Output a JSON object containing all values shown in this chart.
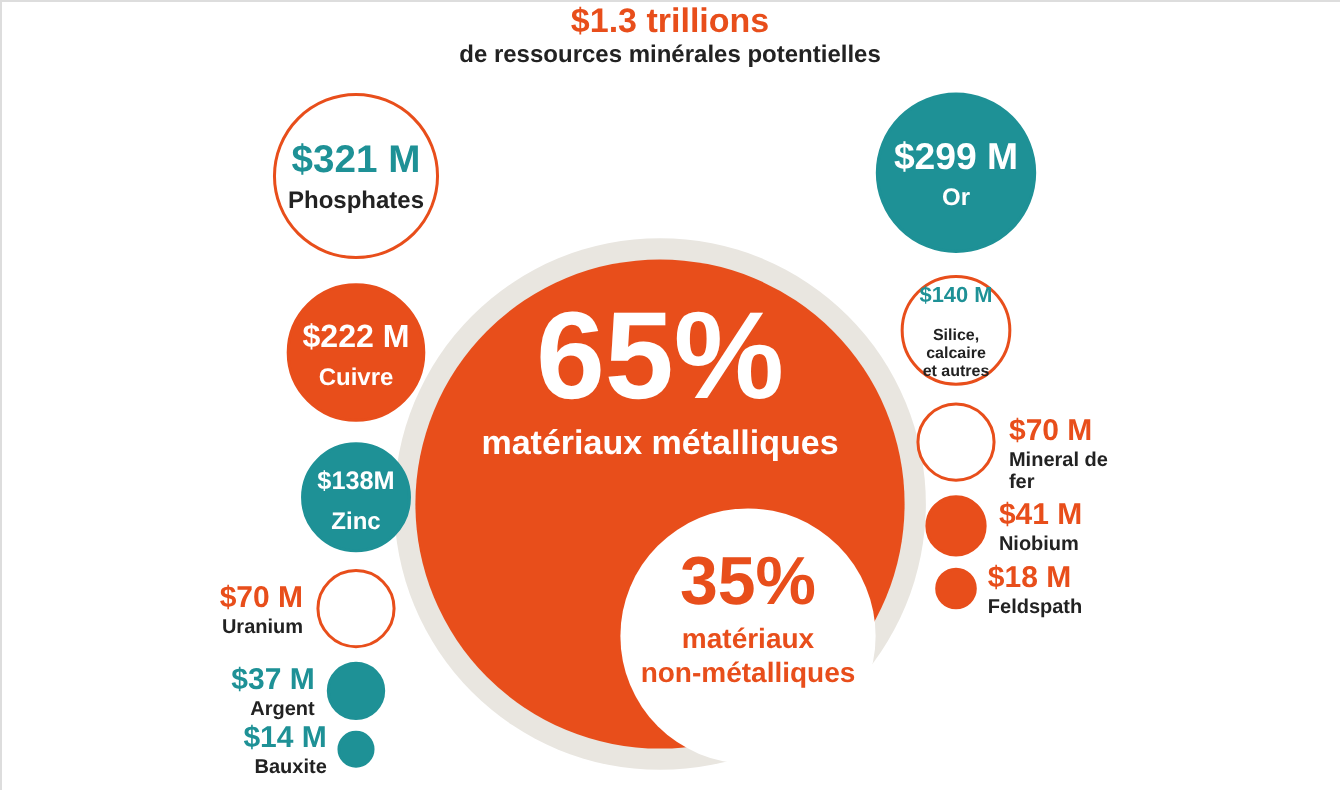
{
  "chart_data": {
    "type": "other",
    "title": "$1.3 trillions",
    "subtitle": "de ressources minérales potentielles",
    "categories": [
      "Phosphates",
      "Or",
      "Cuivre",
      "Silice, calcaire et autres",
      "Zinc",
      "Mineral de fer",
      "Uranium",
      "Niobium",
      "Argent",
      "Feldspath",
      "Bauxite"
    ],
    "values": [
      321,
      299,
      222,
      140,
      138,
      70,
      70,
      41,
      37,
      18,
      14
    ],
    "value_labels": [
      "$321 M",
      "$299 M",
      "$222 M",
      "$140 M",
      "$138M",
      "$70 M",
      "$70 M",
      "$41 M",
      "$37 M",
      "$18 M",
      "$14 M"
    ],
    "colors": [
      "#ffffff",
      "#1e9196",
      "#e84e1b",
      "#ffffff",
      "#1e9196",
      "#ffffff",
      "#ffffff",
      "#e84e1b",
      "#1e9196",
      "#e84e1b",
      "#1e9196"
    ],
    "annotations": [
      "65%",
      "matériaux métalliques",
      "35%",
      "matériaux non-métalliques"
    ]
  }
}
